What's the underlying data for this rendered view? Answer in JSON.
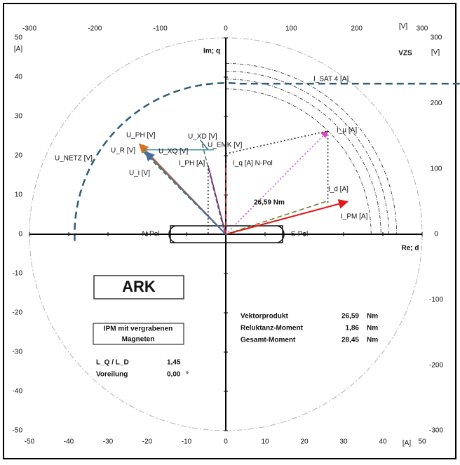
{
  "chart_data": {
    "type": "phasor",
    "xlim": [
      -50,
      50
    ],
    "ylim": [
      -50,
      50
    ],
    "xticks": [
      -50,
      -40,
      -30,
      -20,
      -10,
      0,
      10,
      20,
      30,
      40,
      50
    ],
    "yticks": [
      -50,
      -40,
      -30,
      -20,
      -10,
      0,
      10,
      20,
      30,
      40,
      50
    ],
    "x2lim": [
      -300,
      300
    ],
    "x2ticks": [
      -300,
      -200,
      -100,
      0,
      100,
      200,
      300
    ],
    "y2lim": [
      -300,
      300
    ],
    "y2ticks": [
      -300,
      -200,
      -100,
      0,
      100,
      200,
      300
    ],
    "x_unit": "[A]",
    "y_unit": "[A]",
    "x2_unit": "[V]",
    "y2_unit": "[V]",
    "x_axis_label": "Re; d",
    "y_axis_label": "Im; q",
    "corner_label": "VZS",
    "pole_labels": [
      "N-Pol",
      "S-Pol"
    ],
    "outer_circle": {
      "r": 50,
      "color": "#b0b0b0"
    },
    "u_netz": {
      "name": "U_NETZ [V]",
      "r": 38.5,
      "color": "#2e5e78"
    },
    "sat_arcs": {
      "name": "I_SAT 4 [A]",
      "radii": [
        37,
        39.5,
        41.5,
        43.5
      ],
      "color": "#222222"
    },
    "vectors": [
      {
        "name": "U_PH [V]",
        "color": "#e07020",
        "from": [
          0,
          0
        ],
        "to": [
          -22,
          23
        ]
      },
      {
        "name": "U_R [V]",
        "color": "#5a8a3a",
        "dash": "6 4",
        "from": [
          0,
          0
        ],
        "to": [
          -21.5,
          21.5
        ]
      },
      {
        "name": "U_i [V]",
        "color": "#4a6aa8",
        "from": [
          0,
          0
        ],
        "to": [
          -20.5,
          21
        ]
      },
      {
        "name": "U_XQ [V]",
        "color": "#2a8a9a",
        "from": [
          -21,
          21.5
        ],
        "to": [
          -3,
          21.5
        ]
      },
      {
        "name": "U_XD [V]",
        "color": "#3a6a7a",
        "from": [
          -6.5,
          24
        ],
        "to": [
          -4.5,
          21.5
        ]
      },
      {
        "name": "U_EMK [V]",
        "color": "#4a7a5a",
        "dash": "6 3",
        "from": [
          -6,
          23
        ],
        "to": [
          -0.5,
          1
        ]
      },
      {
        "name": "I_PH [A]",
        "color": "#7a2a7a",
        "from": [
          0,
          0
        ],
        "to": [
          -4.5,
          17.5
        ]
      },
      {
        "name": "I_q [A] N-Pol",
        "color": "#e02020",
        "dash": "7 4",
        "from": [
          0,
          0
        ],
        "to": [
          0,
          18
        ]
      },
      {
        "name": "I_µ [A]",
        "color": "#e040c0",
        "dash": "2 3",
        "from": [
          0,
          0
        ],
        "to": [
          26,
          26.3
        ]
      },
      {
        "name": "I_d [A]",
        "color": "#222222",
        "dash": "2 3",
        "from": [
          26,
          26.3
        ],
        "to": [
          26,
          8
        ]
      },
      {
        "name": "I_PM [A]",
        "color": "#e01818",
        "from": [
          0,
          0
        ],
        "to": [
          31,
          8.3
        ]
      },
      {
        "color": "#6a7a2a",
        "dash": "7 4",
        "from": [
          0,
          0
        ],
        "to": [
          26,
          8.5
        ]
      },
      {
        "color": "#222222",
        "dash": "2 3",
        "from": [
          0,
          20.5
        ],
        "to": [
          26,
          26.3
        ]
      },
      {
        "color": "#222222",
        "dash": "2 3",
        "from": [
          -4.5,
          17.5
        ],
        "to": [
          -4.5,
          0
        ]
      }
    ],
    "torque_label": "26,59  Nm"
  },
  "ark_box": "ARK",
  "motor_box": [
    "IPM mit vergrabenen",
    "Magneten"
  ],
  "results": [
    [
      "Vektorprodukt",
      "26,59",
      "Nm"
    ],
    [
      "Reluktanz-Moment",
      "1,86",
      "Nm"
    ],
    [
      "Gesamt-Moment",
      "28,45",
      "Nm"
    ]
  ],
  "params": [
    [
      "L_Q / L_D",
      "1,45",
      ""
    ],
    [
      "Voreilung",
      "0,00",
      "°"
    ]
  ]
}
